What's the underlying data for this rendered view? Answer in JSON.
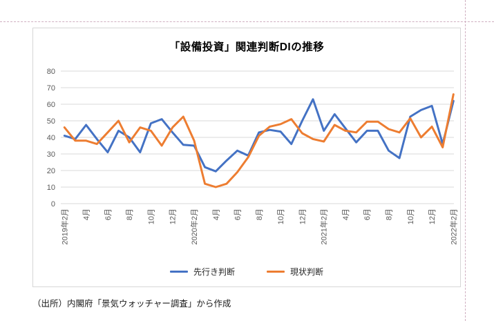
{
  "page": {
    "title": "「設備投資」関連判断DIの推移",
    "source_note": "（出所）内閣府「景気ウォッチャー調査」から作成"
  },
  "chart_data": {
    "type": "line",
    "title": "「設備投資」関連判断DIの推移",
    "grid": true,
    "legend_position": "bottom",
    "ylim": [
      0,
      80
    ],
    "y_ticks": [
      0,
      10,
      20,
      30,
      40,
      50,
      60,
      70,
      80
    ],
    "x_tick_labels": [
      "2019年2月",
      "4月",
      "6月",
      "8月",
      "10月",
      "12月",
      "2020年2月",
      "4月",
      "6月",
      "8月",
      "10月",
      "12月",
      "2021年2月",
      "4月",
      "6月",
      "8月",
      "10月",
      "12月",
      "2022年2月"
    ],
    "x_tick_month_indices": [
      0,
      2,
      4,
      6,
      8,
      10,
      12,
      14,
      16,
      18,
      20,
      22,
      24,
      26,
      28,
      30,
      32,
      34,
      36
    ],
    "categories": [
      "2019年2月",
      "2019年3月",
      "2019年4月",
      "2019年5月",
      "2019年6月",
      "2019年7月",
      "2019年8月",
      "2019年9月",
      "2019年10月",
      "2019年11月",
      "2019年12月",
      "2020年1月",
      "2020年2月",
      "2020年3月",
      "2020年4月",
      "2020年5月",
      "2020年6月",
      "2020年7月",
      "2020年8月",
      "2020年9月",
      "2020年10月",
      "2020年11月",
      "2020年12月",
      "2021年1月",
      "2021年2月",
      "2021年3月",
      "2021年4月",
      "2021年5月",
      "2021年6月",
      "2021年7月",
      "2021年8月",
      "2021年9月",
      "2021年10月",
      "2021年11月",
      "2021年12月",
      "2022年1月",
      "2022年2月"
    ],
    "series": [
      {
        "name": "先行き判断",
        "color": "#4472C4",
        "values": [
          41,
          39,
          47.5,
          39,
          31,
          44,
          40,
          31,
          48.5,
          51,
          43,
          35.5,
          35,
          22,
          19.5,
          26,
          32,
          29,
          43,
          44.5,
          43.5,
          36,
          50,
          63,
          44,
          54,
          45.5,
          37,
          44,
          44,
          32,
          27.5,
          52.5,
          56.5,
          59,
          36,
          62
        ]
      },
      {
        "name": "現状判断",
        "color": "#ED7D31",
        "values": [
          46,
          38,
          38,
          36,
          43,
          50,
          37,
          46,
          44,
          35,
          46,
          52.5,
          38,
          12,
          10,
          12,
          19,
          28,
          41,
          46.5,
          48,
          51,
          42.5,
          39,
          37.5,
          47.5,
          44,
          43,
          49.5,
          49.5,
          45,
          43,
          51.5,
          40,
          46.5,
          34,
          66
        ]
      }
    ],
    "axis_label_color": "#595959",
    "gridline_color": "#d9d9d9"
  }
}
